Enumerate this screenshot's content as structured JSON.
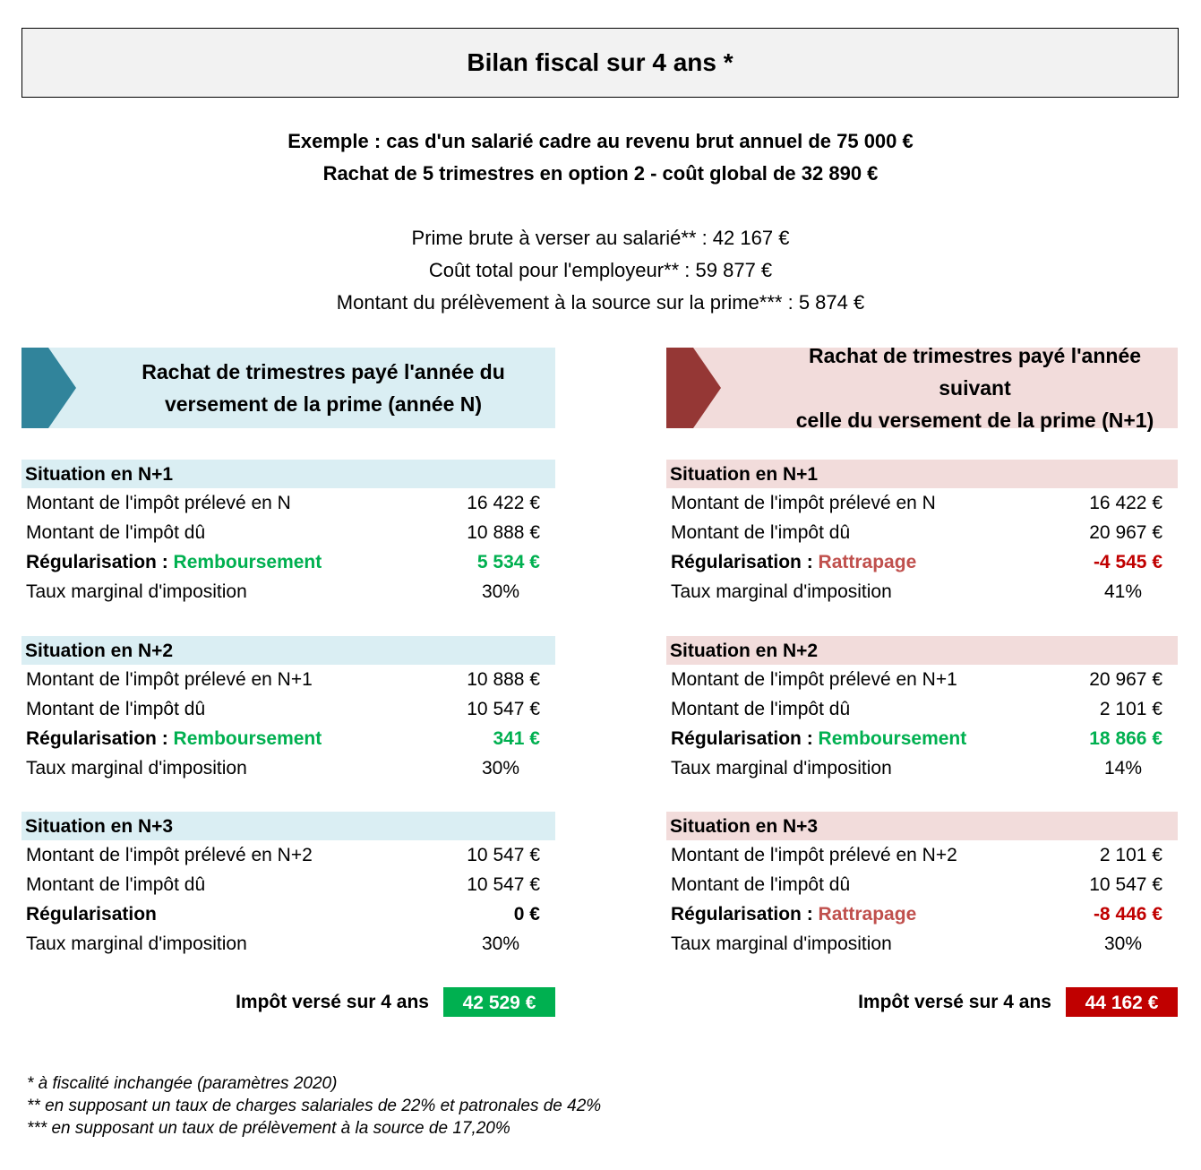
{
  "title": "Bilan fiscal sur 4 ans *",
  "example": {
    "line1": "Exemple : cas d'un salarié cadre au revenu brut annuel de 75 000 €",
    "line2": "Rachat de 5 trimestres en option 2 - coût global de 32 890 €"
  },
  "summary": [
    "Prime brute à verser au salarié** : 42 167 €",
    "Coût total pour l'employeur** : 59 877 €",
    "Montant du prélèvement à la source sur la prime*** : 5 874 €"
  ],
  "colors": {
    "blue_bg": "#DAEEF3",
    "blue_arrow": "#31849B",
    "red_bg": "#F2DCDB",
    "red_arrow": "#953735",
    "green": "#00B050",
    "red": "#C00000",
    "orange": "#C0504D"
  },
  "columns": [
    {
      "id": "left",
      "banner": [
        "Rachat de trimestres payé l'année du",
        "versement de la prime (année N)"
      ],
      "sections": [
        {
          "title": "Situation en N+1",
          "rows": [
            {
              "label": "Montant de l'impôt prélevé en N",
              "value": "16 422 €"
            },
            {
              "label": "Montant de l'impôt dû",
              "value": "10 888 €"
            },
            {
              "label": "Régularisation :",
              "highlight": "Remboursement",
              "value": "5 534 €",
              "tone": "green"
            },
            {
              "label": "Taux marginal d'imposition",
              "value": "30%",
              "pct": true
            }
          ]
        },
        {
          "title": "Situation en N+2",
          "rows": [
            {
              "label": "Montant de l'impôt prélevé en N+1",
              "value": "10 888 €"
            },
            {
              "label": "Montant de l'impôt dû",
              "value": "10 547 €"
            },
            {
              "label": "Régularisation :",
              "highlight": "Remboursement",
              "value": "341 €",
              "tone": "green"
            },
            {
              "label": "Taux marginal d'imposition",
              "value": "30%",
              "pct": true
            }
          ]
        },
        {
          "title": "Situation en N+3",
          "rows": [
            {
              "label": "Montant de l'impôt prélevé en N+2",
              "value": "10 547 €"
            },
            {
              "label": "Montant de l'impôt dû",
              "value": "10 547 €"
            },
            {
              "label": "Régularisation",
              "value": "0 €",
              "tone": "black"
            },
            {
              "label": "Taux marginal d'imposition",
              "value": "30%",
              "pct": true
            }
          ]
        }
      ],
      "total_label": "Impôt versé sur 4 ans",
      "total_value": "42 529 €"
    },
    {
      "id": "right",
      "banner": [
        "Rachat de trimestres payé l'année suivant",
        "celle du versement de la prime (N+1)"
      ],
      "sections": [
        {
          "title": "Situation en N+1",
          "rows": [
            {
              "label": "Montant de l'impôt prélevé en N",
              "value": "16 422 €"
            },
            {
              "label": "Montant de l'impôt dû",
              "value": "20 967 €"
            },
            {
              "label": "Régularisation :",
              "highlight": "Rattrapage",
              "value": "-4 545 €",
              "tone": "red"
            },
            {
              "label": "Taux marginal d'imposition",
              "value": "41%",
              "pct": true
            }
          ]
        },
        {
          "title": "Situation en N+2",
          "rows": [
            {
              "label": "Montant de l'impôt prélevé en N+1",
              "value": "20 967 €"
            },
            {
              "label": "Montant de l'impôt dû",
              "value": "2 101 €"
            },
            {
              "label": "Régularisation :",
              "highlight": "Remboursement",
              "value": "18 866 €",
              "tone": "green"
            },
            {
              "label": "Taux marginal d'imposition",
              "value": "14%",
              "pct": true
            }
          ]
        },
        {
          "title": "Situation en N+3",
          "rows": [
            {
              "label": "Montant de l'impôt prélevé en N+2",
              "value": "2 101 €"
            },
            {
              "label": "Montant de l'impôt dû",
              "value": "10 547 €"
            },
            {
              "label": "Régularisation :",
              "highlight": "Rattrapage",
              "value": "-8 446 €",
              "tone": "red"
            },
            {
              "label": "Taux marginal d'imposition",
              "value": "30%",
              "pct": true
            }
          ]
        }
      ],
      "total_label": "Impôt versé sur 4 ans",
      "total_value": "44 162 €"
    }
  ],
  "footnotes": [
    "* à fiscalité inchangée (paramètres 2020)",
    "** en supposant un taux de charges salariales de 22% et patronales de 42%",
    "*** en supposant un taux de prélèvement à la source de 17,20%"
  ]
}
